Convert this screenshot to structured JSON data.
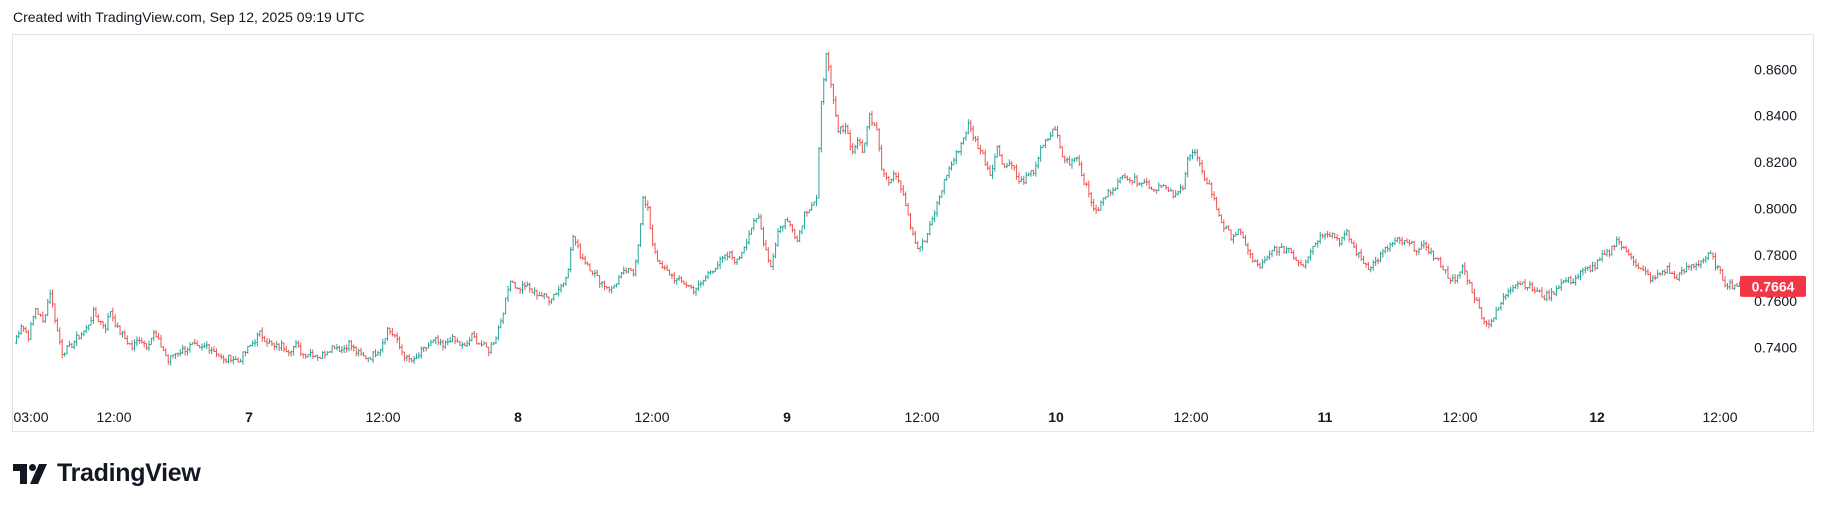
{
  "header": {
    "text": "Created with TradingView.com, Sep 12, 2025 09:19 UTC"
  },
  "brand": {
    "name": "TradingView"
  },
  "colors": {
    "up": "#26a69a",
    "down": "#ef5350",
    "price_label": "#f23645",
    "axis_text": "#131722",
    "border": "#e0e3eb"
  },
  "chart_data": {
    "type": "ohlc-bar",
    "x_ticks": [
      {
        "label": "03:00",
        "bold": false
      },
      {
        "label": "12:00",
        "bold": false
      },
      {
        "label": "7",
        "bold": true
      },
      {
        "label": "12:00",
        "bold": false
      },
      {
        "label": "8",
        "bold": true
      },
      {
        "label": "12:00",
        "bold": false
      },
      {
        "label": "9",
        "bold": true
      },
      {
        "label": "12:00",
        "bold": false
      },
      {
        "label": "10",
        "bold": true
      },
      {
        "label": "12:00",
        "bold": false
      },
      {
        "label": "11",
        "bold": true
      },
      {
        "label": "12:00",
        "bold": false
      },
      {
        "label": "12",
        "bold": true
      },
      {
        "label": "12:00",
        "bold": false
      }
    ],
    "y_ticks": [
      "0.8600",
      "0.8400",
      "0.8200",
      "0.8000",
      "0.7800",
      "0.7600",
      "0.7400"
    ],
    "ylim": [
      0.72,
      0.8735
    ],
    "last_price": "0.7664",
    "price_series": [
      [
        0,
        0.742
      ],
      [
        3,
        0.75
      ],
      [
        6,
        0.745
      ],
      [
        9,
        0.757
      ],
      [
        12,
        0.751
      ],
      [
        15,
        0.764
      ],
      [
        18,
        0.747
      ],
      [
        20,
        0.738
      ],
      [
        23,
        0.74
      ],
      [
        26,
        0.744
      ],
      [
        30,
        0.748
      ],
      [
        33,
        0.755
      ],
      [
        35,
        0.752
      ],
      [
        38,
        0.749
      ],
      [
        40,
        0.756
      ],
      [
        43,
        0.748
      ],
      [
        46,
        0.744
      ],
      [
        49,
        0.74
      ],
      [
        52,
        0.744
      ],
      [
        55,
        0.741
      ],
      [
        58,
        0.746
      ],
      [
        62,
        0.739
      ],
      [
        64,
        0.734
      ],
      [
        66,
        0.737
      ],
      [
        70,
        0.739
      ],
      [
        74,
        0.741
      ],
      [
        77,
        0.739
      ],
      [
        80,
        0.741
      ],
      [
        84,
        0.738
      ],
      [
        87,
        0.734
      ],
      [
        90,
        0.736
      ],
      [
        93,
        0.734
      ],
      [
        96,
        0.738
      ],
      [
        99,
        0.742
      ],
      [
        102,
        0.746
      ],
      [
        105,
        0.743
      ],
      [
        108,
        0.74
      ],
      [
        111,
        0.741
      ],
      [
        114,
        0.739
      ],
      [
        117,
        0.741
      ],
      [
        120,
        0.737
      ],
      [
        123,
        0.738
      ],
      [
        127,
        0.736
      ],
      [
        130,
        0.739
      ],
      [
        133,
        0.741
      ],
      [
        136,
        0.739
      ],
      [
        139,
        0.742
      ],
      [
        142,
        0.738
      ],
      [
        145,
        0.736
      ],
      [
        148,
        0.736
      ],
      [
        152,
        0.74
      ],
      [
        155,
        0.748
      ],
      [
        158,
        0.745
      ],
      [
        160,
        0.74
      ],
      [
        163,
        0.735
      ],
      [
        166,
        0.734
      ],
      [
        169,
        0.738
      ],
      [
        172,
        0.741
      ],
      [
        175,
        0.743
      ],
      [
        178,
        0.74
      ],
      [
        181,
        0.744
      ],
      [
        184,
        0.742
      ],
      [
        187,
        0.74
      ],
      [
        190,
        0.745
      ],
      [
        193,
        0.742
      ],
      [
        197,
        0.739
      ],
      [
        200,
        0.745
      ],
      [
        202,
        0.752
      ],
      [
        204,
        0.76
      ],
      [
        206,
        0.77
      ],
      [
        209,
        0.765
      ],
      [
        212,
        0.767
      ],
      [
        215,
        0.764
      ],
      [
        218,
        0.763
      ],
      [
        222,
        0.761
      ],
      [
        225,
        0.764
      ],
      [
        228,
        0.768
      ],
      [
        230,
        0.775
      ],
      [
        232,
        0.788
      ],
      [
        235,
        0.78
      ],
      [
        238,
        0.776
      ],
      [
        242,
        0.77
      ],
      [
        245,
        0.767
      ],
      [
        248,
        0.765
      ],
      [
        251,
        0.77
      ],
      [
        254,
        0.773
      ],
      [
        257,
        0.772
      ],
      [
        259,
        0.785
      ],
      [
        261,
        0.804
      ],
      [
        263,
        0.799
      ],
      [
        265,
        0.785
      ],
      [
        268,
        0.775
      ],
      [
        272,
        0.772
      ],
      [
        275,
        0.769
      ],
      [
        278,
        0.768
      ],
      [
        282,
        0.765
      ],
      [
        285,
        0.767
      ],
      [
        288,
        0.772
      ],
      [
        291,
        0.775
      ],
      [
        294,
        0.778
      ],
      [
        297,
        0.78
      ],
      [
        300,
        0.777
      ],
      [
        303,
        0.784
      ],
      [
        306,
        0.792
      ],
      [
        309,
        0.796
      ],
      [
        311,
        0.786
      ],
      [
        314,
        0.775
      ],
      [
        317,
        0.79
      ],
      [
        320,
        0.795
      ],
      [
        323,
        0.792
      ],
      [
        325,
        0.786
      ],
      [
        328,
        0.798
      ],
      [
        331,
        0.802
      ],
      [
        333,
        0.804
      ],
      [
        335,
        0.845
      ],
      [
        337,
        0.868
      ],
      [
        339,
        0.852
      ],
      [
        342,
        0.833
      ],
      [
        345,
        0.836
      ],
      [
        348,
        0.824
      ],
      [
        350,
        0.83
      ],
      [
        352,
        0.824
      ],
      [
        355,
        0.84
      ],
      [
        358,
        0.835
      ],
      [
        360,
        0.818
      ],
      [
        363,
        0.811
      ],
      [
        366,
        0.815
      ],
      [
        369,
        0.807
      ],
      [
        372,
        0.793
      ],
      [
        375,
        0.783
      ],
      [
        378,
        0.786
      ],
      [
        381,
        0.795
      ],
      [
        384,
        0.805
      ],
      [
        387,
        0.815
      ],
      [
        390,
        0.821
      ],
      [
        393,
        0.828
      ],
      [
        396,
        0.836
      ],
      [
        399,
        0.829
      ],
      [
        402,
        0.823
      ],
      [
        405,
        0.815
      ],
      [
        408,
        0.826
      ],
      [
        411,
        0.818
      ],
      [
        414,
        0.82
      ],
      [
        417,
        0.811
      ],
      [
        420,
        0.813
      ],
      [
        423,
        0.816
      ],
      [
        426,
        0.825
      ],
      [
        429,
        0.83
      ],
      [
        432,
        0.835
      ],
      [
        435,
        0.822
      ],
      [
        438,
        0.82
      ],
      [
        441,
        0.823
      ],
      [
        443,
        0.815
      ],
      [
        446,
        0.806
      ],
      [
        449,
        0.798
      ],
      [
        452,
        0.804
      ],
      [
        455,
        0.808
      ],
      [
        458,
        0.811
      ],
      [
        461,
        0.815
      ],
      [
        464,
        0.812
      ],
      [
        467,
        0.812
      ],
      [
        470,
        0.811
      ],
      [
        473,
        0.808
      ],
      [
        476,
        0.811
      ],
      [
        479,
        0.807
      ],
      [
        482,
        0.805
      ],
      [
        485,
        0.81
      ],
      [
        487,
        0.822
      ],
      [
        490,
        0.824
      ],
      [
        493,
        0.815
      ],
      [
        496,
        0.81
      ],
      [
        499,
        0.8
      ],
      [
        502,
        0.792
      ],
      [
        505,
        0.788
      ],
      [
        508,
        0.79
      ],
      [
        511,
        0.785
      ],
      [
        514,
        0.777
      ],
      [
        517,
        0.775
      ],
      [
        520,
        0.778
      ],
      [
        523,
        0.783
      ],
      [
        526,
        0.782
      ],
      [
        529,
        0.783
      ],
      [
        532,
        0.778
      ],
      [
        535,
        0.776
      ],
      [
        538,
        0.782
      ],
      [
        541,
        0.787
      ],
      [
        544,
        0.79
      ],
      [
        547,
        0.789
      ],
      [
        550,
        0.786
      ],
      [
        553,
        0.789
      ],
      [
        556,
        0.783
      ],
      [
        559,
        0.778
      ],
      [
        562,
        0.775
      ],
      [
        565,
        0.777
      ],
      [
        568,
        0.781
      ],
      [
        571,
        0.784
      ],
      [
        574,
        0.786
      ],
      [
        577,
        0.785
      ],
      [
        580,
        0.784
      ],
      [
        583,
        0.782
      ],
      [
        586,
        0.784
      ],
      [
        589,
        0.779
      ],
      [
        592,
        0.776
      ],
      [
        595,
        0.771
      ],
      [
        598,
        0.768
      ],
      [
        601,
        0.775
      ],
      [
        603,
        0.77
      ],
      [
        606,
        0.762
      ],
      [
        609,
        0.754
      ],
      [
        611,
        0.75
      ],
      [
        614,
        0.753
      ],
      [
        617,
        0.759
      ],
      [
        620,
        0.765
      ],
      [
        623,
        0.768
      ],
      [
        626,
        0.768
      ],
      [
        629,
        0.766
      ],
      [
        632,
        0.764
      ],
      [
        635,
        0.762
      ],
      [
        638,
        0.763
      ],
      [
        641,
        0.767
      ],
      [
        644,
        0.769
      ],
      [
        647,
        0.769
      ],
      [
        650,
        0.772
      ],
      [
        653,
        0.774
      ],
      [
        656,
        0.775
      ],
      [
        659,
        0.779
      ],
      [
        662,
        0.781
      ],
      [
        665,
        0.787
      ],
      [
        668,
        0.782
      ],
      [
        671,
        0.78
      ],
      [
        674,
        0.774
      ],
      [
        677,
        0.772
      ],
      [
        680,
        0.769
      ],
      [
        683,
        0.772
      ],
      [
        686,
        0.774
      ],
      [
        689,
        0.77
      ],
      [
        692,
        0.772
      ],
      [
        695,
        0.775
      ],
      [
        698,
        0.776
      ],
      [
        701,
        0.778
      ],
      [
        704,
        0.78
      ],
      [
        707,
        0.774
      ],
      [
        710,
        0.768
      ],
      [
        713,
        0.767
      ],
      [
        716,
        0.767
      ]
    ]
  }
}
